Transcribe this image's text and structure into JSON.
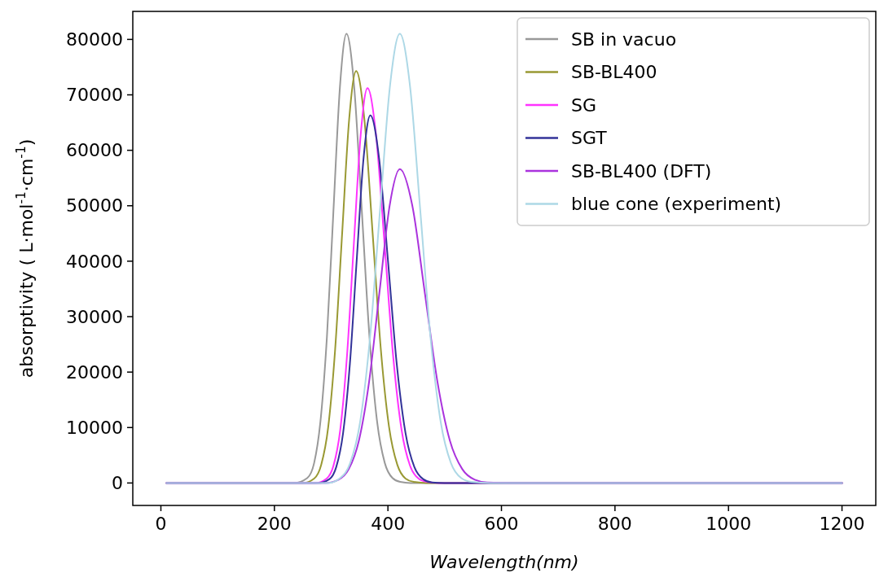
{
  "chart_data": {
    "type": "line",
    "xlabel": "Wavelength(nm)",
    "ylabel": "absorptivity ( L·mol$^{-1}$·cm$^{-1}$)",
    "xlim": [
      -49.5,
      1259.5
    ],
    "xticks": [
      0,
      200,
      400,
      600,
      800,
      1000,
      1200
    ],
    "ylim": [
      -4050,
      85050
    ],
    "yticks": [
      0,
      10000,
      20000,
      30000,
      40000,
      50000,
      60000,
      70000,
      80000
    ],
    "grid": false,
    "legend": "top right",
    "marker": "none",
    "line_style": "solid",
    "series": [
      {
        "name": "SB in vacuo",
        "color": "#999999",
        "x": [
          10,
          235,
          258,
          270,
          281,
          292.5,
          304,
          315.5,
          327,
          340.5,
          354,
          367.5,
          381,
          394.5,
          408,
          421.5,
          440,
          1200
        ],
        "values": [
          0,
          0,
          900,
          3600,
          11000,
          26300,
          49100,
          71500,
          81000,
          71500,
          49100,
          26300,
          11000,
          3600,
          900,
          200,
          0,
          0
        ]
      },
      {
        "name": "SB-BL400",
        "color": "#999933",
        "x": [
          10,
          250,
          270,
          282.5,
          294.8,
          307,
          319.4,
          331.7,
          344,
          358.5,
          373,
          387.5,
          402,
          416.5,
          431,
          445.5,
          470,
          1200
        ],
        "values": [
          0,
          0,
          800,
          3300,
          10100,
          24100,
          45100,
          65600,
          74300,
          65600,
          45100,
          24100,
          10100,
          3300,
          800,
          200,
          0,
          0
        ]
      },
      {
        "name": "SG",
        "color": "#ff33ff",
        "x": [
          10,
          272,
          292,
          304,
          316,
          328,
          340,
          352,
          364,
          379,
          394,
          409,
          424,
          439,
          454,
          469,
          490,
          1200
        ],
        "values": [
          0,
          0,
          800,
          3100,
          9600,
          23100,
          43200,
          62800,
          71200,
          62800,
          43200,
          23100,
          9600,
          3100,
          800,
          200,
          0,
          0
        ]
      },
      {
        "name": "SGT",
        "color": "#333399",
        "x": [
          10,
          277,
          297,
          309,
          321,
          333,
          345,
          357,
          369,
          384.5,
          400,
          415.5,
          431,
          446.5,
          462,
          477.5,
          500,
          1200
        ],
        "values": [
          0,
          0,
          700,
          2900,
          9000,
          21500,
          40200,
          58500,
          66300,
          58500,
          40200,
          21500,
          9000,
          2900,
          700,
          100,
          0,
          0
        ]
      },
      {
        "name": "SB-BL400 (DFT)",
        "color": "#aa33dd",
        "x": [
          10,
          290,
          313,
          331,
          349,
          367,
          385,
          403,
          421,
          443,
          465,
          487,
          509,
          531,
          553,
          575,
          620,
          1200
        ],
        "values": [
          0,
          0,
          600,
          2500,
          7700,
          18400,
          34300,
          50000,
          56600,
          50000,
          34300,
          18400,
          7700,
          2500,
          600,
          100,
          0,
          0
        ]
      },
      {
        "name": "blue cone (experiment)",
        "color": "#add8e6",
        "x": [
          10,
          295,
          316,
          333.5,
          351,
          368.5,
          386,
          403.5,
          421,
          439,
          457,
          475,
          493,
          511,
          529,
          547,
          580,
          620,
          1200
        ],
        "values": [
          0,
          0,
          900,
          3600,
          11000,
          26300,
          49100,
          71500,
          81000,
          71500,
          49100,
          26300,
          11000,
          3600,
          900,
          200,
          0,
          0,
          0
        ]
      }
    ]
  }
}
